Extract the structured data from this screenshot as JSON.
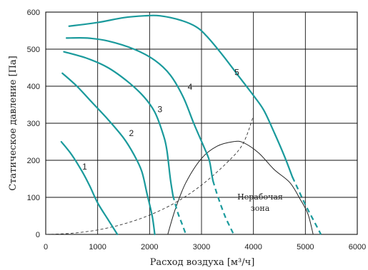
{
  "colors": {
    "curve": "#1a9a9c",
    "grid": "#111111",
    "dashed_limit": "#333333",
    "boundary": "#222222"
  },
  "chart_data": {
    "type": "line",
    "title": "",
    "xlabel": "Расход воздуха [м³/ч]",
    "ylabel": "Статическое давление [Па]",
    "xlim": [
      0,
      6000
    ],
    "ylim": [
      0,
      600
    ],
    "x_ticks": [
      "0",
      "1000",
      "2000",
      "3000",
      "4000",
      "5000",
      "6000"
    ],
    "y_ticks": [
      "0",
      "100",
      "200",
      "300",
      "400",
      "500",
      "600"
    ],
    "grid": true,
    "legend": "none",
    "zone_label": [
      "Нерабочая",
      "зона"
    ],
    "series": [
      {
        "name": "1",
        "solid": [
          [
            300,
            250
          ],
          [
            500,
            215
          ],
          [
            700,
            170
          ],
          [
            850,
            130
          ],
          [
            1000,
            85
          ],
          [
            1200,
            40
          ],
          [
            1380,
            0
          ]
        ],
        "dashed": []
      },
      {
        "name": "2",
        "solid": [
          [
            320,
            435
          ],
          [
            600,
            400
          ],
          [
            900,
            355
          ],
          [
            1200,
            310
          ],
          [
            1500,
            260
          ],
          [
            1700,
            215
          ],
          [
            1850,
            170
          ],
          [
            1950,
            110
          ],
          [
            2050,
            50
          ],
          [
            2100,
            0
          ]
        ],
        "dashed": []
      },
      {
        "name": "3",
        "solid": [
          [
            350,
            493
          ],
          [
            800,
            475
          ],
          [
            1200,
            450
          ],
          [
            1600,
            410
          ],
          [
            1900,
            370
          ],
          [
            2100,
            330
          ],
          [
            2250,
            275
          ],
          [
            2330,
            230
          ],
          [
            2400,
            150
          ],
          [
            2450,
            105
          ]
        ],
        "dashed": [
          [
            2450,
            105
          ],
          [
            2540,
            60
          ],
          [
            2620,
            30
          ],
          [
            2700,
            0
          ]
        ]
      },
      {
        "name": "4",
        "solid": [
          [
            400,
            530
          ],
          [
            800,
            530
          ],
          [
            1200,
            522
          ],
          [
            1700,
            500
          ],
          [
            2100,
            470
          ],
          [
            2400,
            430
          ],
          [
            2650,
            370
          ],
          [
            2850,
            300
          ],
          [
            3050,
            235
          ],
          [
            3150,
            200
          ],
          [
            3200,
            160
          ],
          [
            3220,
            145
          ]
        ],
        "dashed": [
          [
            3220,
            145
          ],
          [
            3320,
            100
          ],
          [
            3450,
            50
          ],
          [
            3550,
            20
          ],
          [
            3620,
            0
          ]
        ]
      },
      {
        "name": "5",
        "solid": [
          [
            450,
            562
          ],
          [
            1000,
            572
          ],
          [
            1500,
            585
          ],
          [
            1900,
            590
          ],
          [
            2200,
            590
          ],
          [
            2600,
            578
          ],
          [
            2900,
            560
          ],
          [
            3100,
            535
          ],
          [
            3400,
            485
          ],
          [
            3700,
            430
          ],
          [
            4000,
            375
          ],
          [
            4200,
            335
          ],
          [
            4400,
            275
          ],
          [
            4600,
            210
          ],
          [
            4750,
            155
          ]
        ],
        "dashed": [
          [
            4750,
            155
          ],
          [
            4850,
            125
          ],
          [
            5000,
            80
          ],
          [
            5150,
            40
          ],
          [
            5300,
            0
          ]
        ]
      }
    ],
    "limit_curve_dashed": [
      [
        0,
        0
      ],
      [
        500,
        3
      ],
      [
        1000,
        12
      ],
      [
        1500,
        28
      ],
      [
        2000,
        52
      ],
      [
        2500,
        86
      ],
      [
        3000,
        133
      ],
      [
        3500,
        195
      ],
      [
        3800,
        245
      ],
      [
        4000,
        320
      ]
    ],
    "nonworking_boundary": [
      [
        2350,
        0
      ],
      [
        2500,
        70
      ],
      [
        2700,
        140
      ],
      [
        3000,
        205
      ],
      [
        3300,
        238
      ],
      [
        3600,
        250
      ],
      [
        3800,
        248
      ],
      [
        4100,
        220
      ],
      [
        4400,
        175
      ],
      [
        4700,
        140
      ],
      [
        4900,
        95
      ],
      [
        5050,
        55
      ],
      [
        5150,
        0
      ]
    ],
    "curve_label_positions": [
      [
        750,
        175
      ],
      [
        1650,
        265
      ],
      [
        2200,
        330
      ],
      [
        2780,
        390
      ],
      [
        3680,
        430
      ]
    ]
  }
}
